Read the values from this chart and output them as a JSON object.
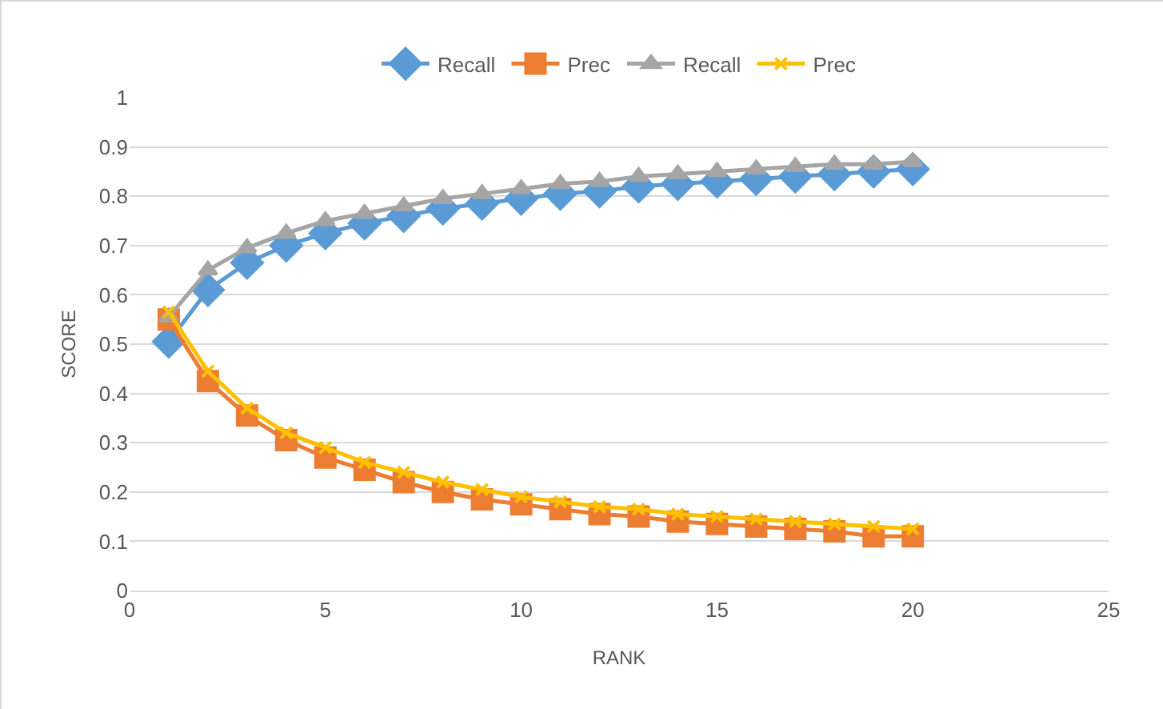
{
  "chart_data": {
    "type": "line",
    "xlabel": "RANK",
    "ylabel": "SCORE",
    "x": [
      1,
      2,
      3,
      4,
      5,
      6,
      7,
      8,
      9,
      10,
      11,
      12,
      13,
      14,
      15,
      16,
      17,
      18,
      19,
      20
    ],
    "series": [
      {
        "name": "Recall",
        "color": "#5b9bd5",
        "marker": "diamond",
        "values": [
          0.505,
          0.61,
          0.665,
          0.7,
          0.725,
          0.745,
          0.76,
          0.775,
          0.785,
          0.795,
          0.805,
          0.81,
          0.82,
          0.825,
          0.83,
          0.835,
          0.84,
          0.845,
          0.85,
          0.855
        ]
      },
      {
        "name": "Prec",
        "color": "#ed7d31",
        "marker": "square",
        "values": [
          0.55,
          0.425,
          0.355,
          0.305,
          0.27,
          0.245,
          0.22,
          0.2,
          0.185,
          0.175,
          0.165,
          0.155,
          0.15,
          0.14,
          0.135,
          0.13,
          0.125,
          0.12,
          0.11,
          0.11
        ]
      },
      {
        "name": "Recall",
        "color": "#a5a5a5",
        "marker": "triangle",
        "values": [
          0.555,
          0.65,
          0.695,
          0.725,
          0.75,
          0.765,
          0.78,
          0.795,
          0.805,
          0.815,
          0.825,
          0.83,
          0.84,
          0.845,
          0.85,
          0.855,
          0.86,
          0.865,
          0.865,
          0.87
        ]
      },
      {
        "name": "Prec",
        "color": "#ffc000",
        "marker": "cross",
        "values": [
          0.565,
          0.445,
          0.37,
          0.32,
          0.29,
          0.26,
          0.24,
          0.22,
          0.205,
          0.19,
          0.18,
          0.17,
          0.165,
          0.155,
          0.15,
          0.145,
          0.14,
          0.135,
          0.13,
          0.125
        ]
      }
    ],
    "xlim": [
      0,
      25
    ],
    "xticks": [
      0,
      5,
      10,
      15,
      20,
      25
    ],
    "ylim": [
      0,
      1
    ],
    "yticks": [
      0,
      0.1,
      0.2,
      0.3,
      0.4,
      0.5,
      0.6,
      0.7,
      0.8,
      0.9,
      1
    ],
    "grid": "y",
    "legend": "top",
    "line_style": "solid"
  }
}
